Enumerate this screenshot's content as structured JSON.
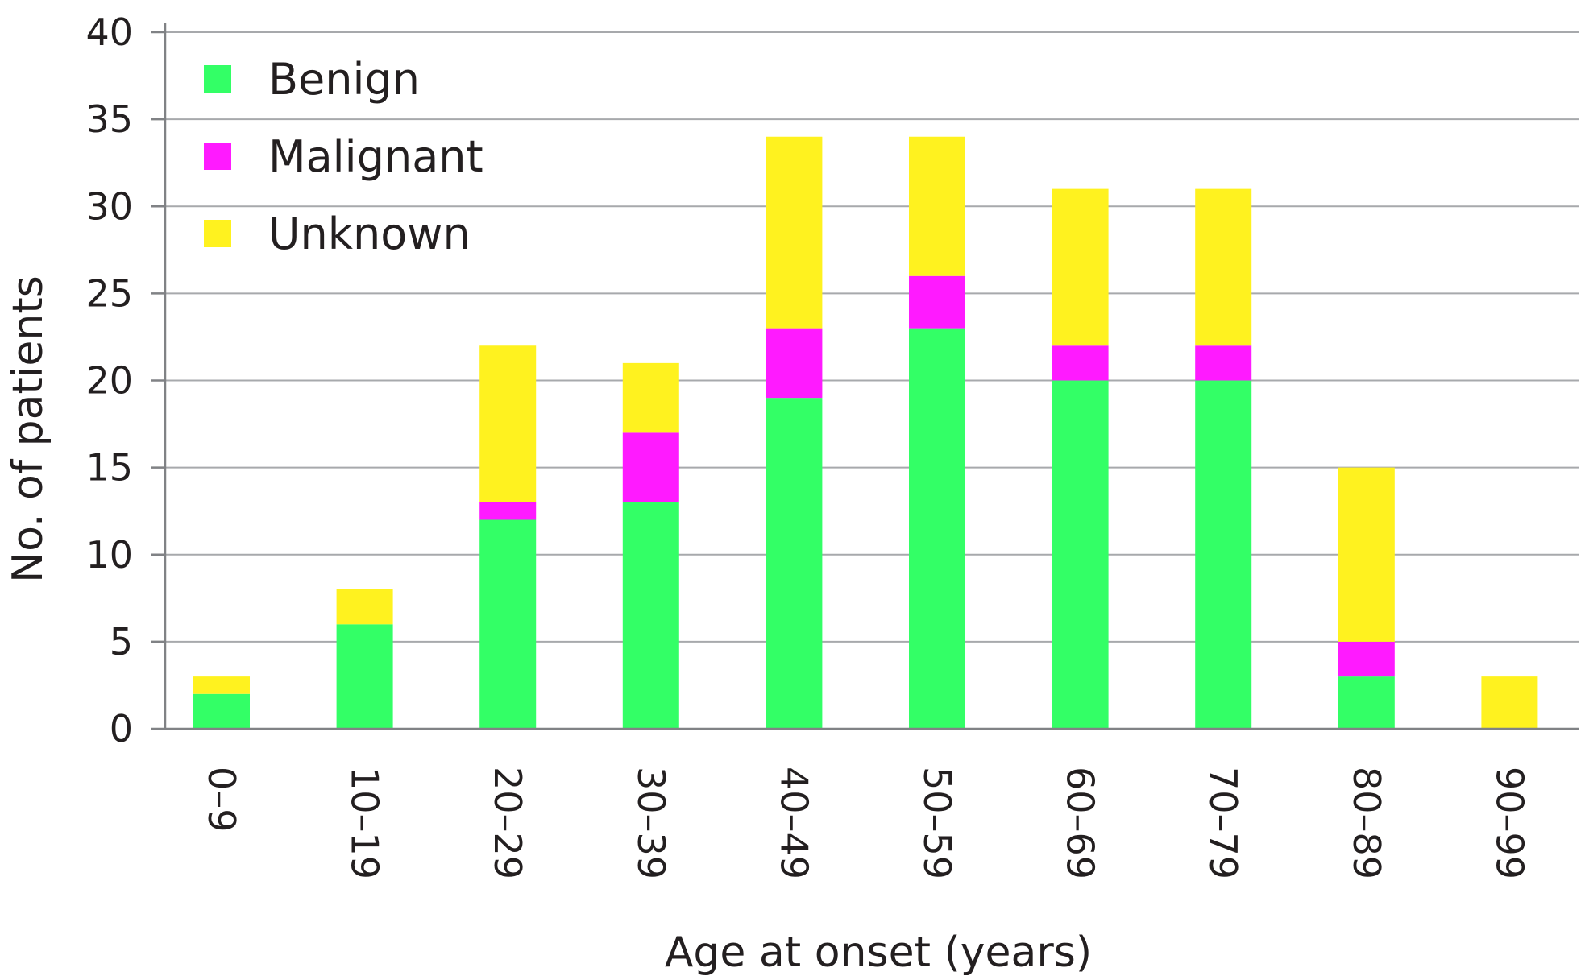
{
  "chart_data": {
    "type": "bar",
    "stacked": true,
    "title": "",
    "xlabel": "Age at onset (years)",
    "ylabel": "No. of patients",
    "ylim": [
      0,
      40
    ],
    "yticks": [
      0,
      5,
      10,
      15,
      20,
      25,
      30,
      35,
      40
    ],
    "grid": true,
    "legend_position": "top-left",
    "categories": [
      "0–9",
      "10–19",
      "20–29",
      "30–39",
      "40–49",
      "50–59",
      "60–69",
      "70–79",
      "80–89",
      "90–99"
    ],
    "series": [
      {
        "name": "Benign",
        "color": "#33ff66",
        "values": [
          2,
          6,
          12,
          13,
          19,
          23,
          20,
          20,
          3,
          0
        ]
      },
      {
        "name": "Malignant",
        "color": "#ff1aff",
        "values": [
          0,
          0,
          1,
          4,
          4,
          3,
          2,
          2,
          2,
          0
        ]
      },
      {
        "name": "Unknown",
        "color": "#fff21f",
        "values": [
          1,
          2,
          9,
          4,
          11,
          8,
          9,
          9,
          10,
          3
        ]
      }
    ]
  }
}
